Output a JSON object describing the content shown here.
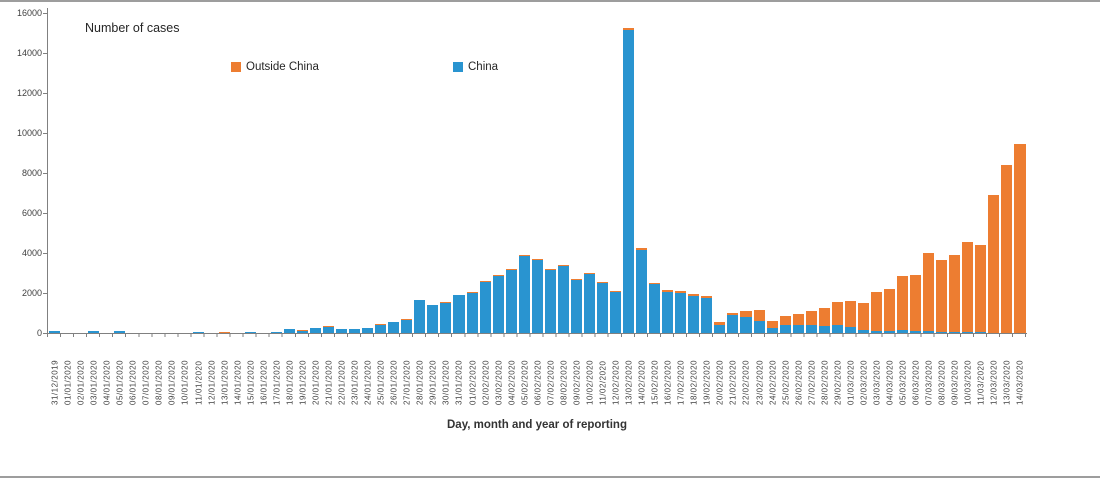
{
  "chart": {
    "title": "Number of cases",
    "xlabel": "Day, month and year of reporting",
    "legend": [
      {
        "label": "Outside China",
        "color": "#ED7D31"
      },
      {
        "label": "China",
        "color": "#2994D0"
      }
    ]
  },
  "chart_data": {
    "type": "bar",
    "stacked": true,
    "title": "Number of cases",
    "xlabel": "Day, month and year of reporting",
    "ylabel": "Number of cases",
    "ylim": [
      0,
      16000
    ],
    "y_ticks": [
      0,
      2000,
      4000,
      6000,
      8000,
      10000,
      12000,
      14000,
      16000
    ],
    "grid": false,
    "legend_position": "top",
    "categories": [
      "31/12/2019",
      "01/01/2020",
      "02/01/2020",
      "03/01/2020",
      "04/01/2020",
      "05/01/2020",
      "06/01/2020",
      "07/01/2020",
      "08/01/2020",
      "09/01/2020",
      "10/01/2020",
      "11/01/2020",
      "12/01/2020",
      "13/01/2020",
      "14/01/2020",
      "15/01/2020",
      "16/01/2020",
      "17/01/2020",
      "18/01/2020",
      "19/01/2020",
      "20/01/2020",
      "21/01/2020",
      "22/01/2020",
      "23/01/2020",
      "24/01/2020",
      "25/01/2020",
      "26/01/2020",
      "27/01/2020",
      "28/01/2020",
      "29/01/2020",
      "30/01/2020",
      "31/01/2020",
      "01/02/2020",
      "02/02/2020",
      "03/02/2020",
      "04/02/2020",
      "05/02/2020",
      "06/02/2020",
      "07/02/2020",
      "08/02/2020",
      "09/02/2020",
      "10/02/2020",
      "11/02/2020",
      "12/02/2020",
      "13/02/2020",
      "14/02/2020",
      "15/02/2020",
      "16/02/2020",
      "17/02/2020",
      "18/02/2020",
      "19/02/2020",
      "20/02/2020",
      "21/02/2020",
      "22/02/2020",
      "23/02/2020",
      "24/02/2020",
      "25/02/2020",
      "26/02/2020",
      "27/02/2020",
      "28/02/2020",
      "29/02/2020",
      "01/03/2020",
      "02/03/2020",
      "03/03/2020",
      "04/03/2020",
      "05/03/2020",
      "06/03/2020",
      "07/03/2020",
      "08/03/2020",
      "09/03/2020",
      "10/03/2020",
      "11/03/2020",
      "12/03/2020",
      "13/03/2020",
      "14/03/2020"
    ],
    "series": [
      {
        "name": "China",
        "color": "#2994D0",
        "values": [
          100,
          0,
          0,
          95,
          0,
          100,
          0,
          0,
          0,
          0,
          0,
          45,
          0,
          25,
          0,
          30,
          0,
          30,
          200,
          100,
          230,
          280,
          210,
          190,
          240,
          410,
          530,
          660,
          1640,
          1390,
          1520,
          1880,
          2010,
          2540,
          2870,
          3170,
          3870,
          3670,
          3130,
          3330,
          2660,
          2960,
          2490,
          2040,
          15150,
          4160,
          2430,
          2060,
          1990,
          1870,
          1750,
          400,
          890,
          820,
          600,
          250,
          390,
          390,
          390,
          350,
          420,
          300,
          130,
          120,
          120,
          140,
          100,
          100,
          45,
          45,
          30,
          30,
          25,
          20,
          25
        ]
      },
      {
        "name": "Outside China",
        "color": "#ED7D31",
        "values": [
          0,
          0,
          0,
          0,
          0,
          0,
          0,
          0,
          0,
          0,
          0,
          0,
          0,
          30,
          0,
          30,
          0,
          35,
          0,
          35,
          40,
          50,
          10,
          15,
          15,
          25,
          25,
          25,
          30,
          30,
          35,
          40,
          40,
          45,
          45,
          50,
          50,
          50,
          55,
          55,
          55,
          60,
          60,
          60,
          80,
          90,
          70,
          110,
          95,
          95,
          85,
          150,
          110,
          280,
          530,
          330,
          440,
          540,
          700,
          900,
          1150,
          1280,
          1350,
          1910,
          2060,
          2710,
          2780,
          3920,
          3590,
          3840,
          4520,
          4350,
          6890,
          8395,
          9440
        ]
      }
    ]
  }
}
